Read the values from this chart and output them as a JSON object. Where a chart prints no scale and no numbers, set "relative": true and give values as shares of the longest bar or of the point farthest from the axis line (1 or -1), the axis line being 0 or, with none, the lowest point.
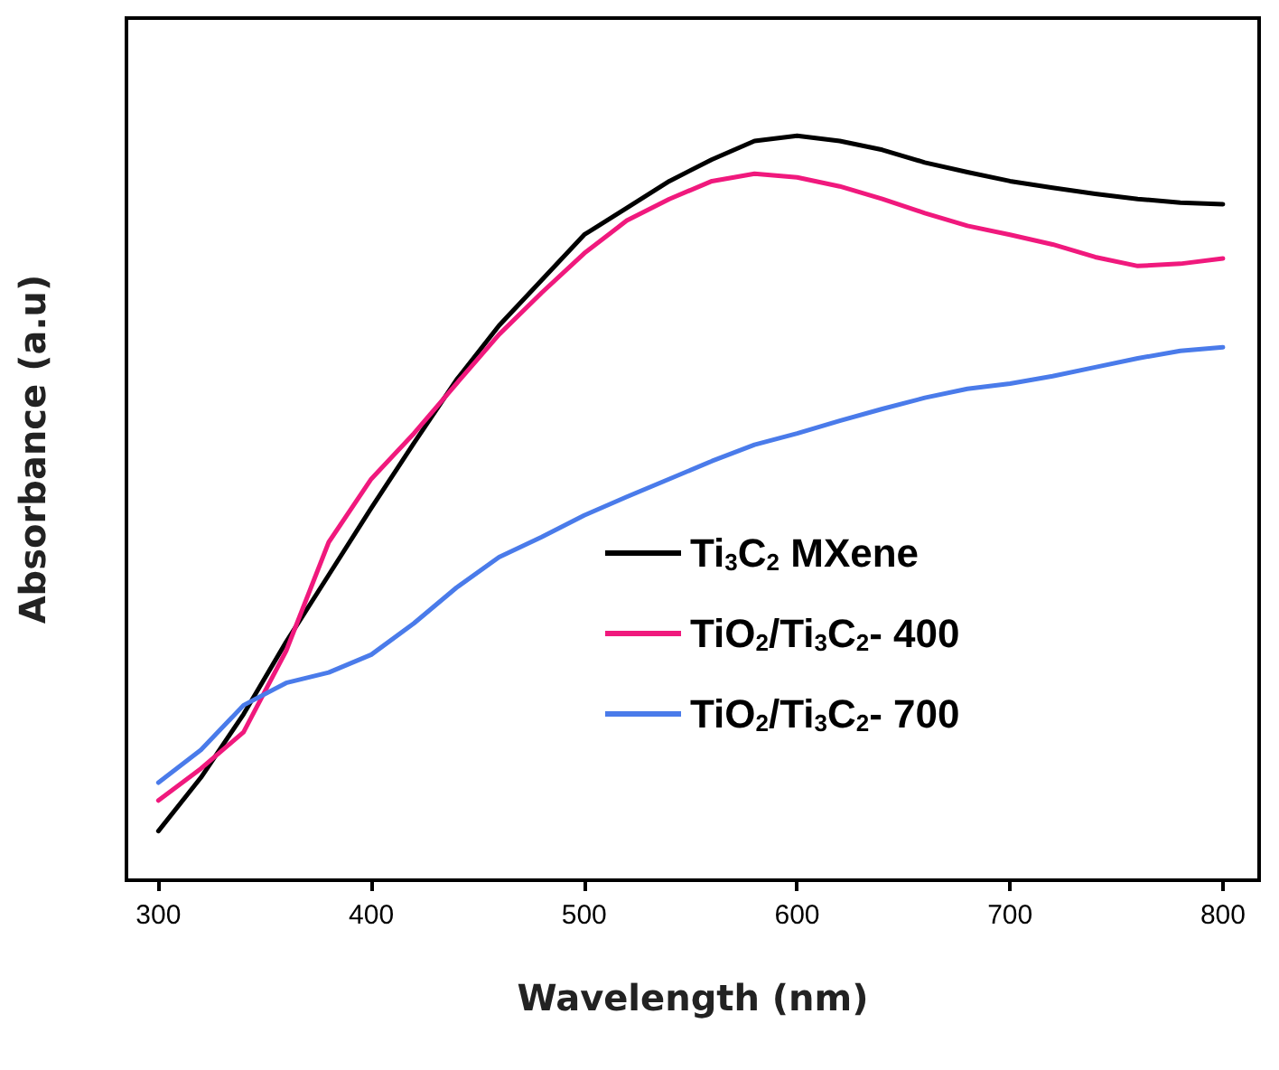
{
  "chart_data": {
    "type": "line",
    "xlabel": "Wavelength (nm)",
    "ylabel": "Absorbance (a.u)",
    "relative": true,
    "xlim": [
      285,
      817
    ],
    "xticks": [
      300,
      400,
      500,
      600,
      700,
      800
    ],
    "grid": false,
    "legend": "right",
    "marker": "none",
    "line_style": "solid",
    "x": [
      300,
      320,
      340,
      360,
      380,
      400,
      420,
      440,
      460,
      480,
      500,
      520,
      540,
      560,
      580,
      600,
      620,
      640,
      660,
      680,
      700,
      720,
      740,
      760,
      780,
      800
    ],
    "series": [
      {
        "name": "Ti$_{3}$C$_{2}$ MXene",
        "color": "#000000",
        "values": [
          0.066,
          0.138,
          0.223,
          0.32,
          0.41,
          0.5,
          0.587,
          0.672,
          0.745,
          0.806,
          0.867,
          0.903,
          0.939,
          0.968,
          0.993,
          1,
          0.993,
          0.981,
          0.964,
          0.951,
          0.939,
          0.93,
          0.922,
          0.915,
          0.91,
          0.908
        ]
      },
      {
        "name": "TiO$_{2}$/Ti$_{3}$C$_{2}$- 400",
        "color": "#f0197d",
        "values": [
          0.107,
          0.15,
          0.199,
          0.308,
          0.454,
          0.539,
          0.6,
          0.667,
          0.733,
          0.789,
          0.842,
          0.886,
          0.915,
          0.939,
          0.949,
          0.944,
          0.932,
          0.915,
          0.896,
          0.879,
          0.867,
          0.854,
          0.837,
          0.825,
          0.828,
          0.835
        ]
      },
      {
        "name": "TiO$_{2}$/Ti$_{3}$C$_{2}$- 700",
        "color": "#4a7bea",
        "values": [
          0.131,
          0.175,
          0.235,
          0.265,
          0.279,
          0.303,
          0.345,
          0.393,
          0.434,
          0.461,
          0.49,
          0.515,
          0.539,
          0.563,
          0.585,
          0.6,
          0.617,
          0.633,
          0.648,
          0.66,
          0.667,
          0.677,
          0.689,
          0.701,
          0.711,
          0.716
        ]
      }
    ]
  }
}
